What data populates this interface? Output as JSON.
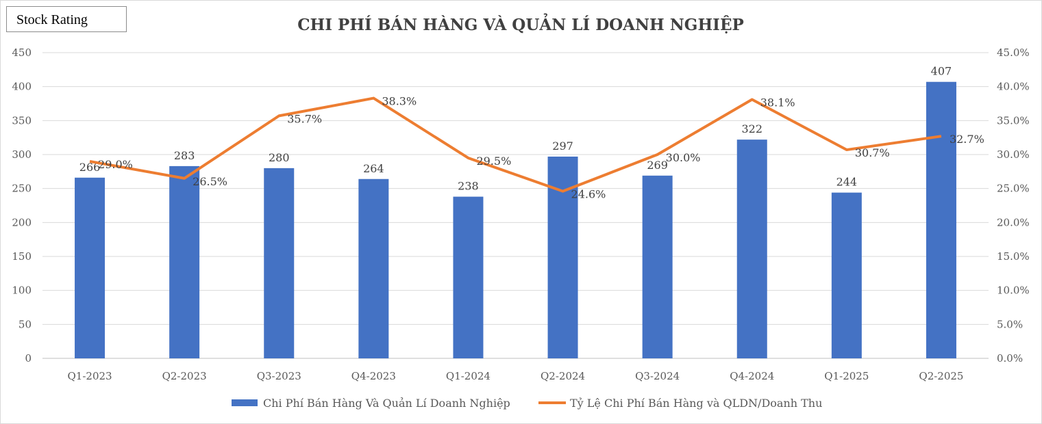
{
  "badge": {
    "label": "Stock Rating"
  },
  "chart_data": {
    "type": "bar",
    "title": "CHI PHÍ BÁN HÀNG VÀ QUẢN LÍ DOANH NGHIỆP",
    "categories": [
      "Q1-2023",
      "Q2-2023",
      "Q3-2023",
      "Q4-2023",
      "Q1-2024",
      "Q2-2024",
      "Q3-2024",
      "Q4-2024",
      "Q1-2025",
      "Q2-2025"
    ],
    "series": [
      {
        "name": "Chi Phí Bán Hàng Và Quản Lí Doanh Nghiệp",
        "type": "bar",
        "axis": "left",
        "color": "#4472C4",
        "values": [
          266,
          283,
          280,
          264,
          238,
          297,
          269,
          322,
          244,
          407
        ],
        "labels": [
          "266",
          "283",
          "280",
          "264",
          "238",
          "297",
          "269",
          "322",
          "244",
          "407"
        ]
      },
      {
        "name": "Tỷ Lệ Chi Phí Bán Hàng và QLDN/Doanh Thu",
        "type": "line",
        "axis": "right",
        "color": "#ED7D31",
        "values": [
          29.0,
          26.5,
          35.7,
          38.3,
          29.5,
          24.6,
          30.0,
          38.1,
          30.7,
          32.7
        ],
        "labels": [
          "29.0%",
          "26.5%",
          "35.7%",
          "38.3%",
          "29.5%",
          "24.6%",
          "30.0%",
          "38.1%",
          "30.7%",
          "32.7%"
        ]
      }
    ],
    "y_left": {
      "min": 0,
      "max": 450,
      "step": 50,
      "ticks": [
        "0",
        "50",
        "100",
        "150",
        "200",
        "250",
        "300",
        "350",
        "400",
        "450"
      ]
    },
    "y_right": {
      "min": 0,
      "max": 45,
      "step": 5,
      "ticks": [
        "0.0%",
        "5.0%",
        "10.0%",
        "15.0%",
        "20.0%",
        "25.0%",
        "30.0%",
        "35.0%",
        "40.0%",
        "45.0%"
      ]
    },
    "grid": true,
    "legend": "bottom-center"
  }
}
